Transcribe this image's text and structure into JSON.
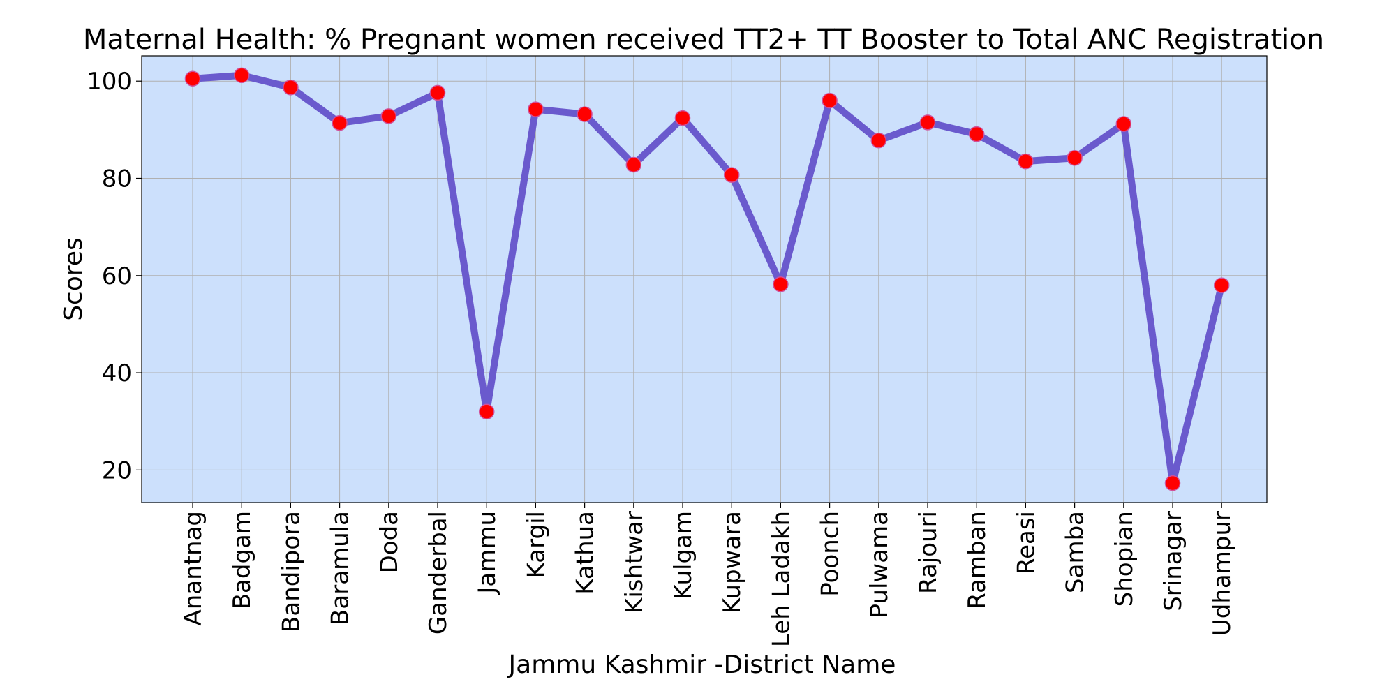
{
  "chart_data": {
    "type": "line",
    "title": "Maternal Health:  % Pregnant women received TT2+ TT Booster to Total ANC Registration",
    "xlabel": "Jammu Kashmir -District Name",
    "ylabel": "Scores",
    "categories": [
      "Anantnag",
      "Badgam",
      "Bandipora",
      "Baramula",
      "Doda",
      "Ganderbal",
      "Jammu",
      "Kargil",
      "Kathua",
      "Kishtwar",
      "Kulgam",
      "Kupwara",
      "Leh Ladakh",
      "Poonch",
      "Pulwama",
      "Rajouri",
      "Ramban",
      "Reasi",
      "Samba",
      "Shopian",
      "Srinagar",
      "Udhampur"
    ],
    "series": [
      {
        "values": [
          100.5,
          101.2,
          98.7,
          91.4,
          92.8,
          97.6,
          32.0,
          94.2,
          93.2,
          82.8,
          92.4,
          80.7,
          58.2,
          96.0,
          87.8,
          91.5,
          89.1,
          83.5,
          84.2,
          91.2,
          17.3,
          58.0
        ]
      }
    ],
    "yticks": [
      20,
      40,
      60,
      80,
      100
    ],
    "ylim": [
      13.3,
      105.2
    ],
    "grid": true,
    "colors": {
      "background": "#cce0fc",
      "line": "#6a5acd",
      "marker_fill": "#ff0000",
      "marker_edge": "#d0509a",
      "grid": "#b0b0b0"
    }
  }
}
